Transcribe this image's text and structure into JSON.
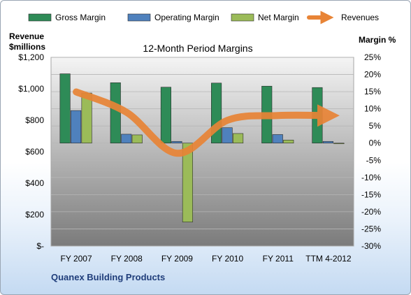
{
  "company": "Quanex Building Products",
  "chart_data": {
    "type": "bar",
    "title": "12-Month Period Margins",
    "left_axis_label": [
      "Revenue",
      "$millions"
    ],
    "right_axis_label": "Margin %",
    "categories": [
      "FY 2007",
      "FY 2008",
      "FY 2009",
      "FY 2010",
      "FY 2011",
      "TTM 4-2012"
    ],
    "left_ticks": [
      "$-",
      "$200",
      "$400",
      "$600",
      "$800",
      "$1,000",
      "$1,200"
    ],
    "right_ticks": [
      "-30%",
      "-25%",
      "-20%",
      "-15%",
      "-10%",
      "-5%",
      "0%",
      "5%",
      "10%",
      "15%",
      "20%",
      "25%"
    ],
    "ylim_left": [
      0,
      1200
    ],
    "ylim_right": [
      -30,
      25
    ],
    "series": [
      {
        "name": "Gross Margin",
        "axis": "right",
        "kind": "bar",
        "color": "#2e8b57",
        "values": [
          20.2,
          17.6,
          16.3,
          17.5,
          16.6,
          16.2
        ]
      },
      {
        "name": "Operating Margin",
        "axis": "right",
        "kind": "bar",
        "color": "#4f81bd",
        "values": [
          9.5,
          2.6,
          0.5,
          4.5,
          2.5,
          0.5
        ]
      },
      {
        "name": "Net Margin",
        "axis": "right",
        "kind": "bar",
        "color": "#9bbb59",
        "values": [
          14.6,
          2.4,
          -23.0,
          2.8,
          0.9,
          -0.2
        ]
      },
      {
        "name": "Revenues",
        "axis": "left",
        "kind": "line",
        "color": "#e88436",
        "values": [
          980,
          850,
          590,
          800,
          830,
          830
        ]
      }
    ],
    "legend_position": "top",
    "grid": true
  }
}
